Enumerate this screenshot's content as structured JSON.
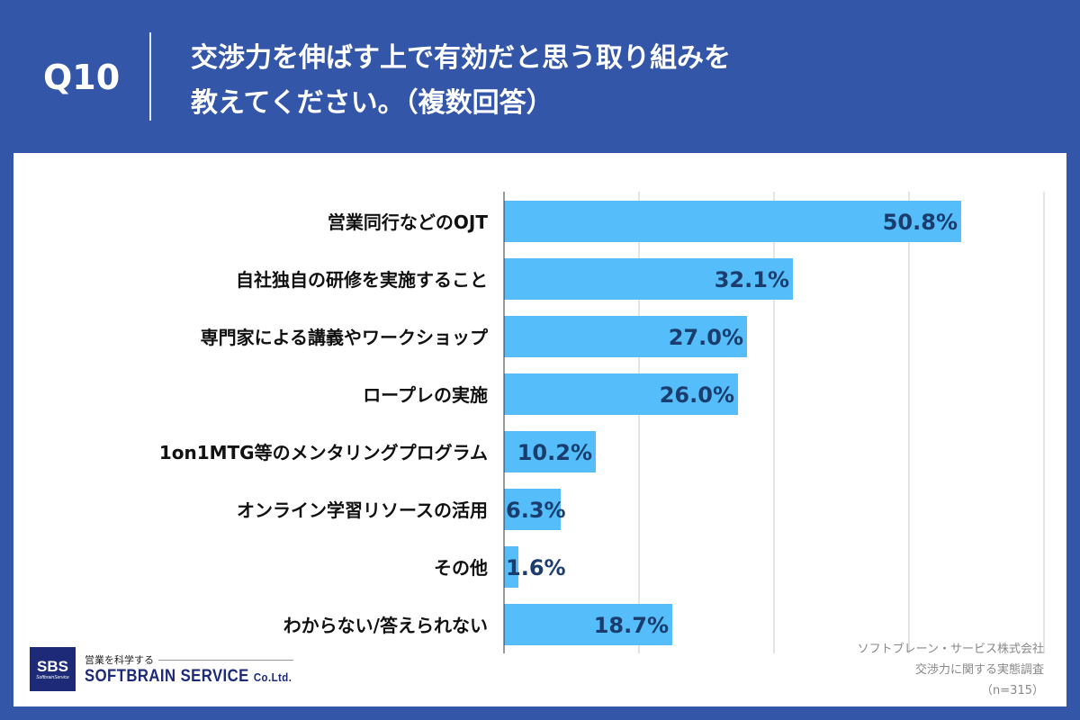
{
  "header": {
    "question": "Q10",
    "title_line1": "交渉力を伸ばす上で有効だと思う取り組みを",
    "title_line2": "教えてください。（複数回答）"
  },
  "chart_data": {
    "type": "bar",
    "orientation": "horizontal",
    "categories": [
      "営業同行などのOJT",
      "自社独自の研修を実施すること",
      "専門家による講義やワークショップ",
      "ロープレの実施",
      "1on1MTG等のメンタリングプログラム",
      "オンライン学習リソースの活用",
      "その他",
      "わからない/答えられない"
    ],
    "values": [
      50.8,
      32.1,
      27.0,
      26.0,
      10.2,
      6.3,
      1.6,
      18.7
    ],
    "labels": [
      "50.8%",
      "32.1%",
      "27.0%",
      "26.0%",
      "10.2%",
      "6.3%",
      "1.6%",
      "18.7%"
    ],
    "xlim": [
      0,
      60
    ],
    "grid_step": 15,
    "grid": true,
    "colors": {
      "bar": "#55bdf9",
      "label": "#1a3d6e",
      "grid": "#c8c8c8"
    }
  },
  "logo": {
    "mark": "SBS",
    "mark_sub": "SoftbrainService",
    "tagline": "営業を科学する",
    "name": "SOFTBRAIN  SERVICE",
    "suffix": "Co.Ltd."
  },
  "source": {
    "company": "ソフトブレーン・サービス株式会社",
    "survey": "交渉力に関する実態調査",
    "n": "（n=315）"
  }
}
